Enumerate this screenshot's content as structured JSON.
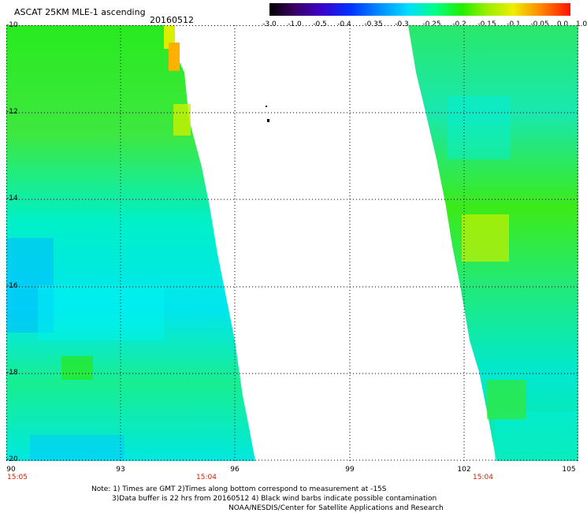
{
  "header": {
    "title": "ASCAT 25KM MLE-1 ascending",
    "date": "20160512"
  },
  "colorbar": {
    "labels": [
      "-3.0",
      "-1.0",
      "-0.5",
      "-0.4",
      "-0.35",
      "-0.3",
      "-0.25",
      "-0.2",
      "-0.15",
      "-0.1",
      "-0.05",
      "0.0",
      "1.0"
    ]
  },
  "axes": {
    "y_ticks": [
      "-10",
      "-12",
      "-14",
      "-16",
      "-18",
      "-20"
    ],
    "x_ticks": [
      "90",
      "93",
      "96",
      "99",
      "102",
      "105"
    ],
    "times": [
      "15:05",
      "15:04",
      "15:04"
    ]
  },
  "notes": {
    "line1": "Note: 1) Times are GMT 2)Times along bottom correspond to measurement at -15S",
    "line2": "3)Data buffer is 22 hrs from 20160512 4) Black wind barbs indicate possible contamination",
    "line3": "NOAA/NESDIS/Center for Satellite Applications and Research"
  },
  "map": {
    "lon_range": [
      90,
      105
    ],
    "lat_range": [
      -10,
      -20
    ],
    "grid": true,
    "swaths": [
      {
        "name": "west-swath",
        "lon_min": 90,
        "lon_east_top": 94.5,
        "lon_east_bottom": 97.0
      },
      {
        "name": "east-swath",
        "lon_west_top": 100.5,
        "lon_west_bottom": 103.0,
        "lon_max": 105
      }
    ],
    "colors": {
      "cyan": "#00f0e6",
      "green": "#28ea1e",
      "blue": "#00b0ff",
      "yellow": "#d8f000",
      "orange": "#ffb000"
    }
  }
}
